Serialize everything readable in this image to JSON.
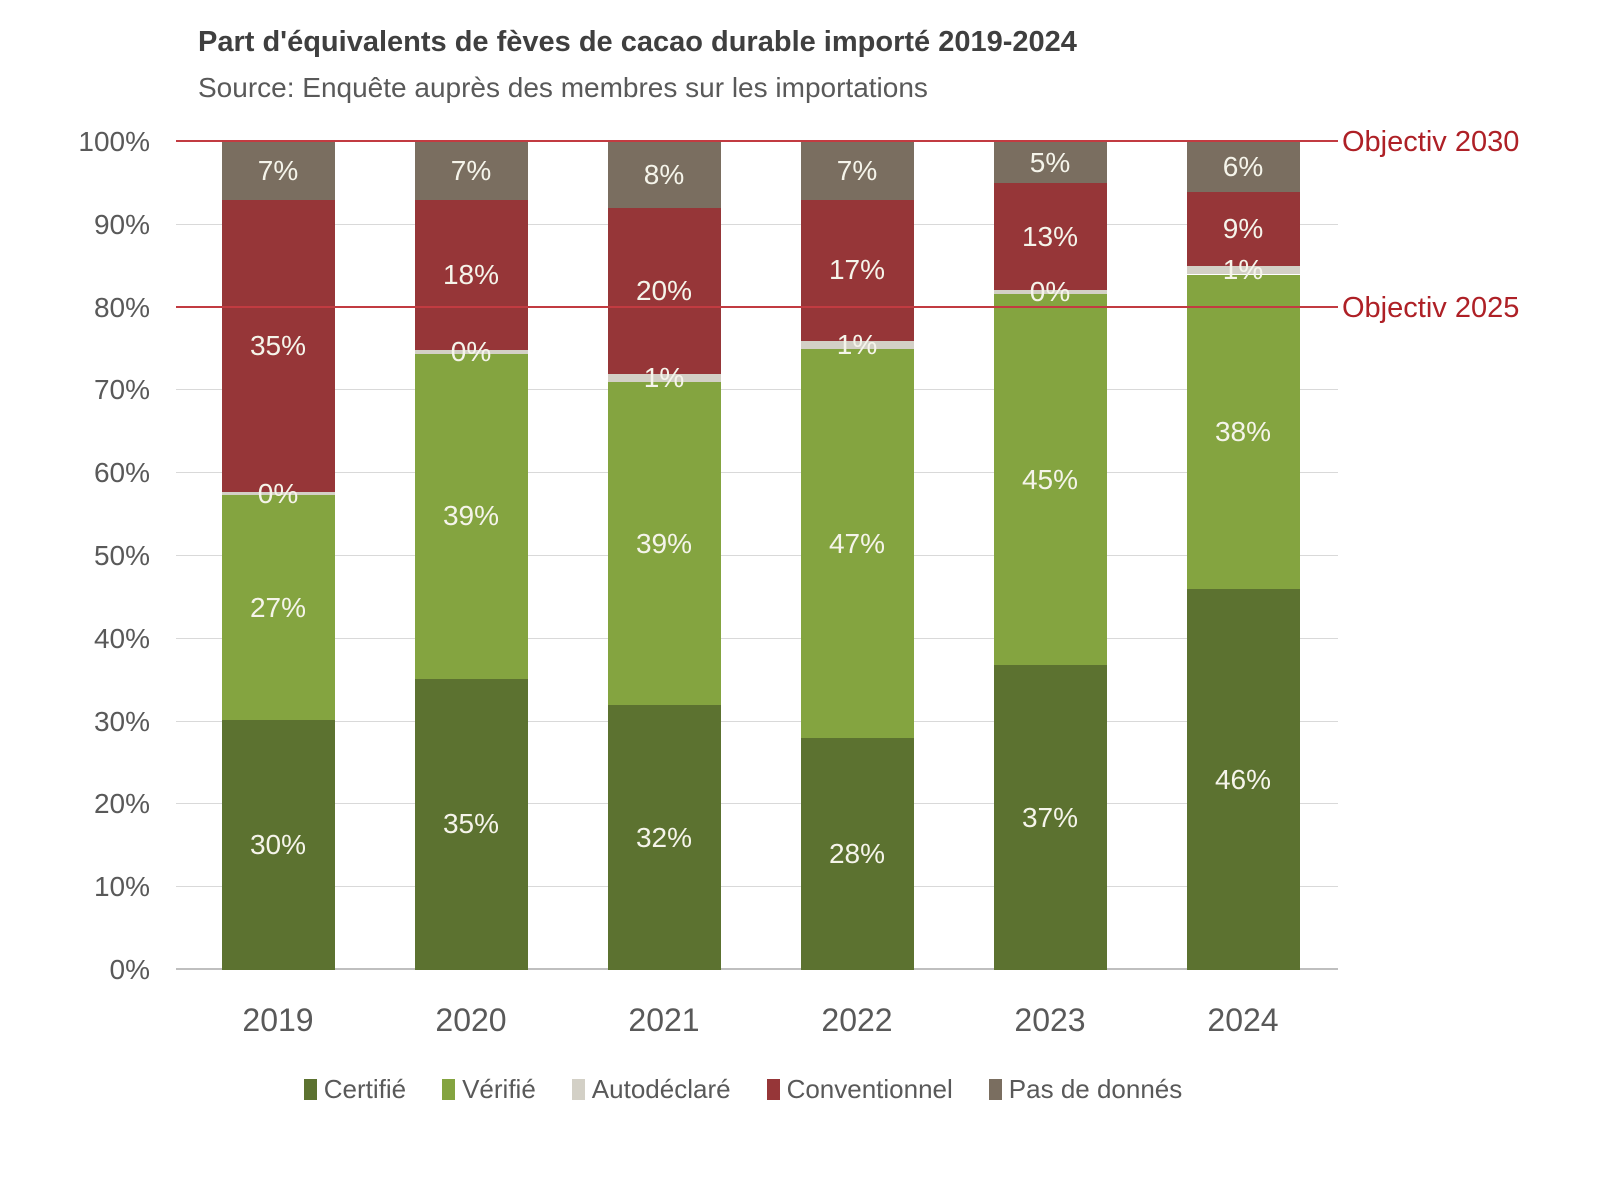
{
  "title": "Part d'équivalents de fèves de cacao durable importé 2019-2024",
  "subtitle": "Source: Enquête auprès des membres sur les importations",
  "objectives": [
    {
      "label": "Objectiv 2030",
      "value": 100
    },
    {
      "label": "Objectiv 2025",
      "value": 80
    }
  ],
  "objective_line_color": "#c23b41",
  "objective_text_color": "#ae2026",
  "chart_data": {
    "type": "bar",
    "stacked": true,
    "title": "Part d'équivalents de fèves de cacao durable importé 2019-2024",
    "subtitle": "Source: Enquête auprès des membres sur les importations",
    "categories": [
      "2019",
      "2020",
      "2021",
      "2022",
      "2023",
      "2024"
    ],
    "series": [
      {
        "name": "Certifié",
        "color": "#5c7230",
        "values": [
          30,
          35,
          32,
          28,
          37,
          46
        ]
      },
      {
        "name": "Vérifié",
        "color": "#84a440",
        "values": [
          27,
          39,
          39,
          47,
          45,
          38
        ]
      },
      {
        "name": "Autodéclaré",
        "color": "#d3d0c6",
        "values": [
          0,
          0,
          1,
          1,
          0,
          1
        ]
      },
      {
        "name": "Conventionnel",
        "color": "#963638",
        "values": [
          35,
          18,
          20,
          17,
          13,
          9
        ]
      },
      {
        "name": "Pas de donnés",
        "color": "#7a6e60",
        "values": [
          7,
          7,
          8,
          7,
          5,
          6
        ]
      }
    ],
    "value_suffix": "%",
    "data_label_color": "#f5f4ea",
    "ylim": [
      0,
      100
    ],
    "yticks": [
      "0%",
      "10%",
      "20%",
      "30%",
      "40%",
      "50%",
      "60%",
      "70%",
      "80%",
      "90%",
      "100%"
    ],
    "grid": true,
    "grid_color": "#d9d9d9",
    "legend_position": "bottom",
    "reference_lines": [
      {
        "label": "Objectiv 2030",
        "y": 100
      },
      {
        "label": "Objectiv 2025",
        "y": 80
      }
    ]
  }
}
